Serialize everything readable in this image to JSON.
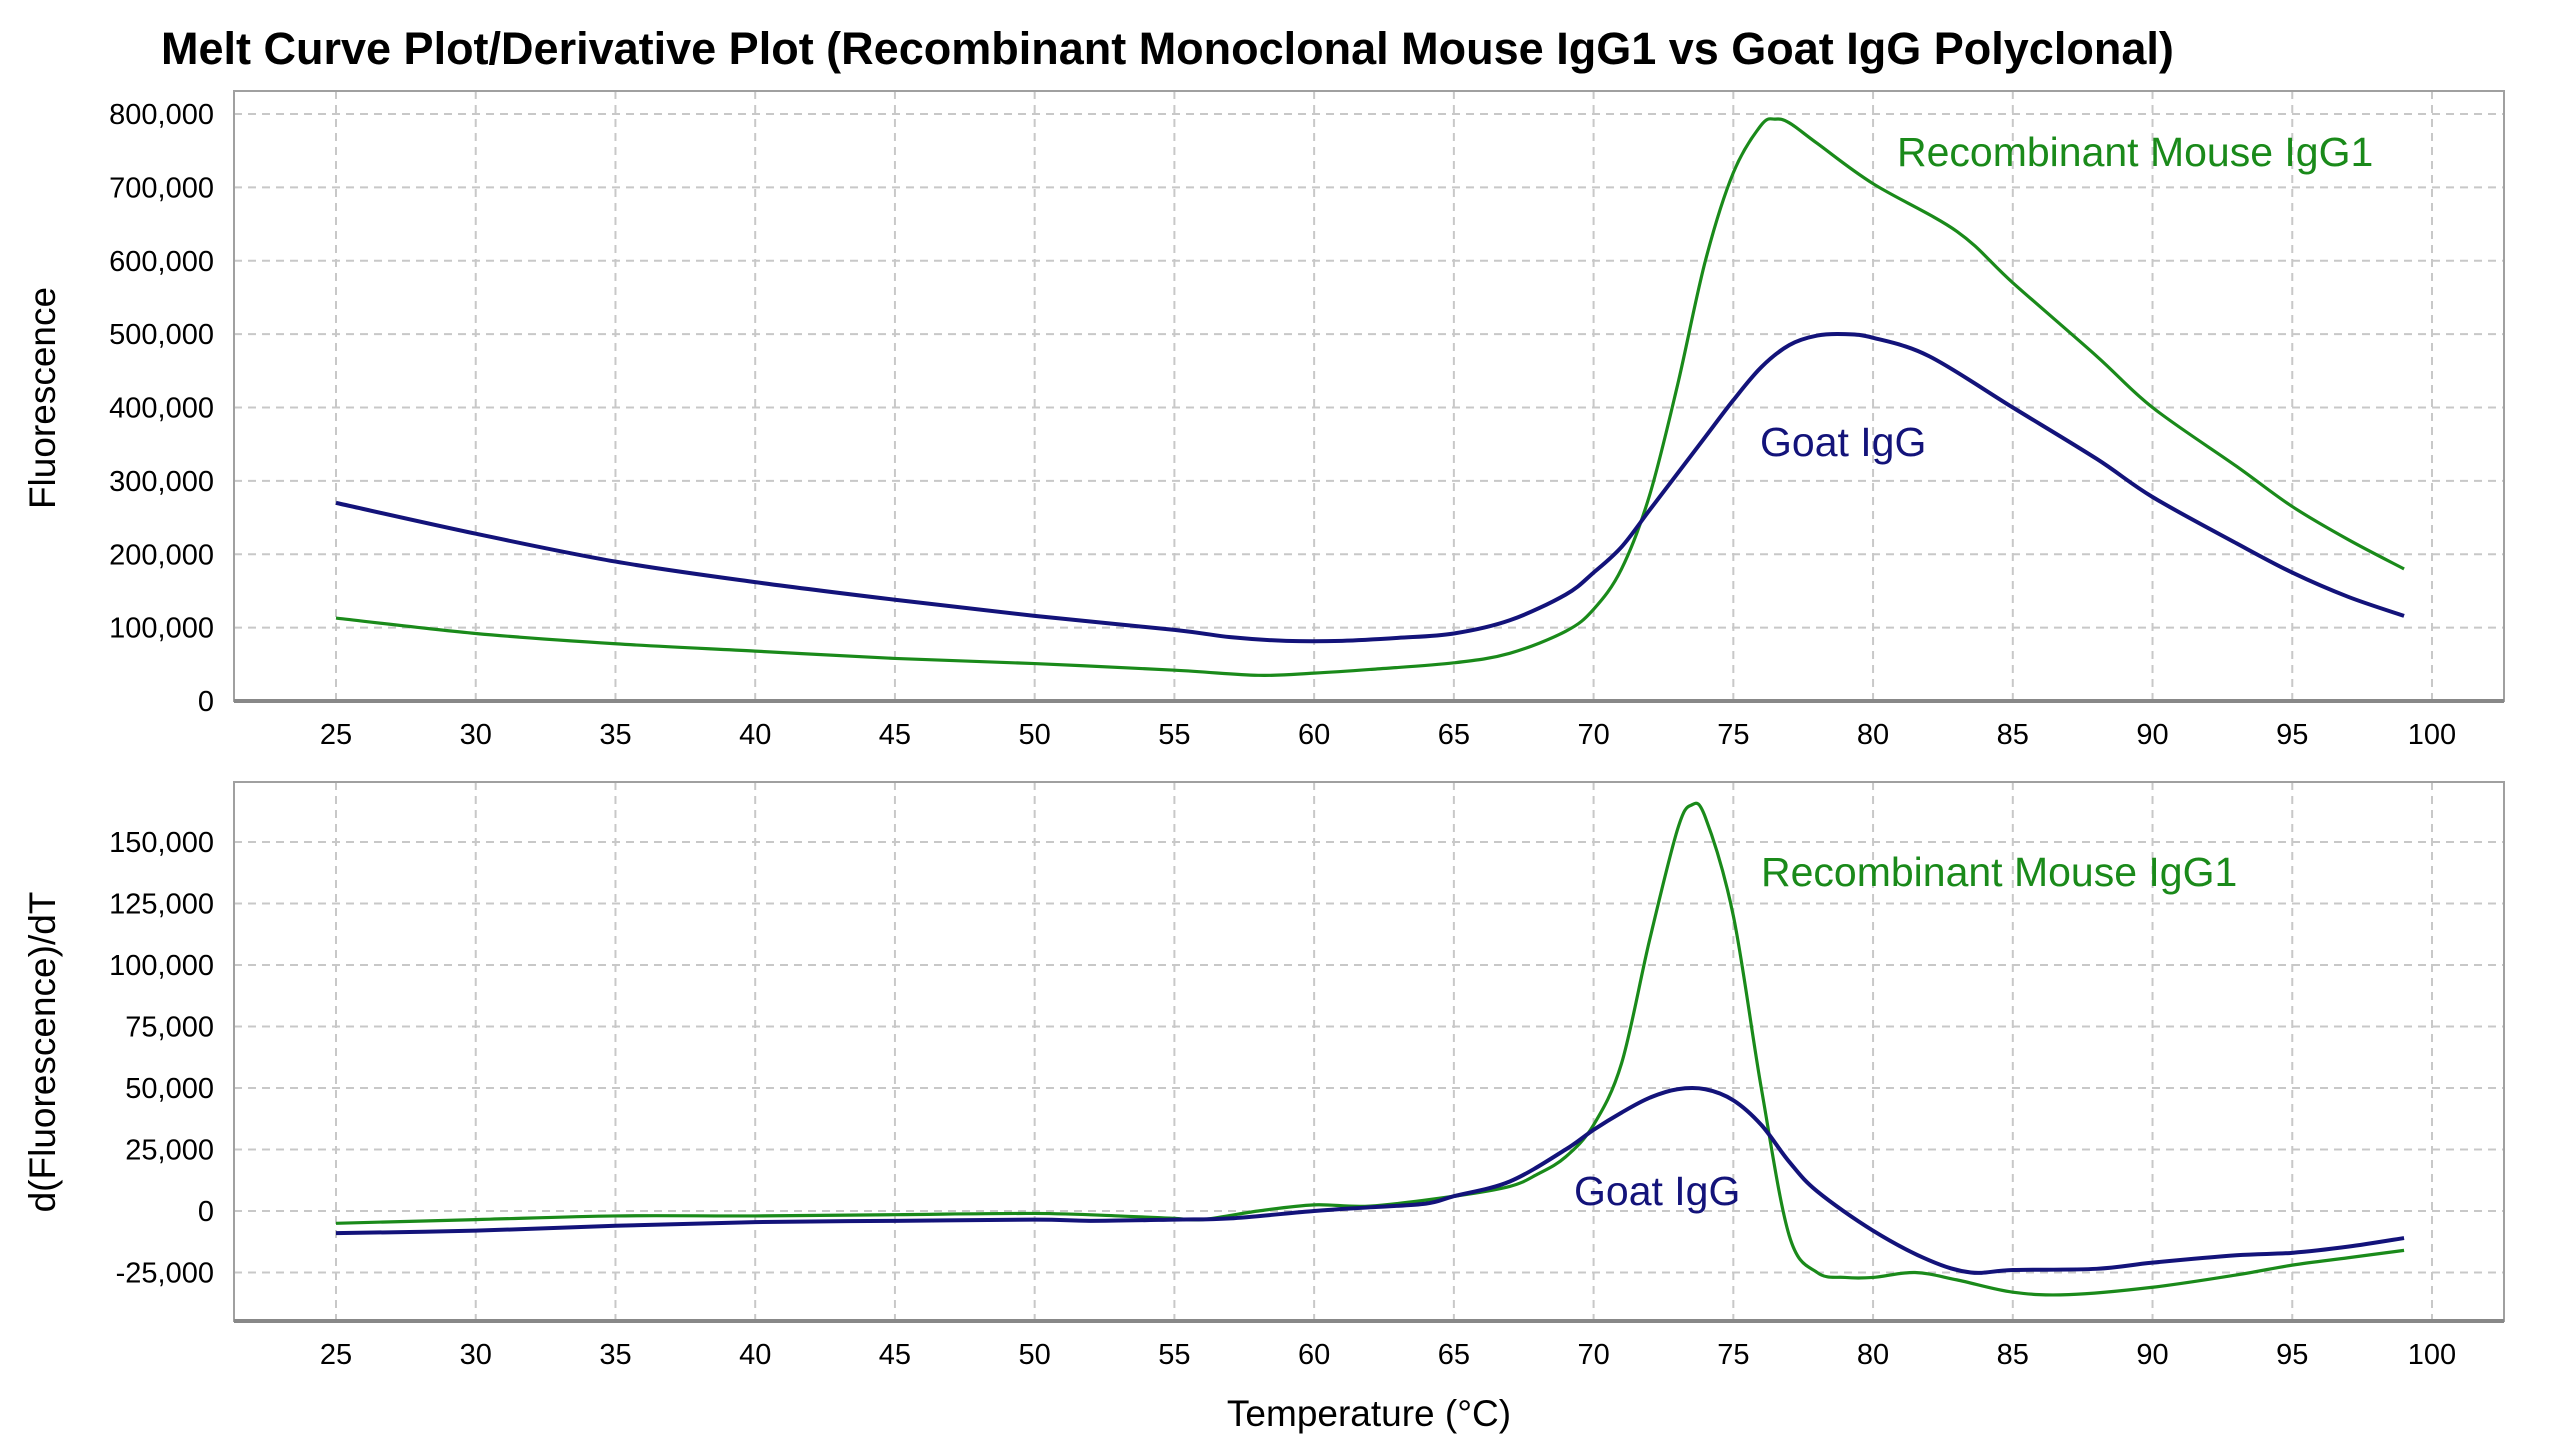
{
  "title": "Melt Curve Plot/Derivative Plot (Recombinant Monoclonal Mouse IgG1 vs Goat IgG Polyclonal)",
  "colors": {
    "green": "#1a8a1a",
    "navy": "#13137a",
    "grid": "#c8c8c8"
  },
  "chart_data": [
    {
      "type": "line",
      "ylabel": "Fluorescence",
      "xlabel": "",
      "xlim": [
        21.5,
        102.5
      ],
      "ylim": [
        0,
        830000
      ],
      "xticks": [
        25,
        30,
        35,
        40,
        45,
        50,
        55,
        60,
        65,
        70,
        75,
        80,
        85,
        90,
        95,
        100
      ],
      "yticks": [
        0,
        100000,
        200000,
        300000,
        400000,
        500000,
        600000,
        700000,
        800000
      ],
      "ytick_labels": [
        "0",
        "100,000",
        "200,000",
        "300,000",
        "400,000",
        "500,000",
        "600,000",
        "700,000",
        "800,000"
      ],
      "grid": true,
      "series": [
        {
          "name": "Recombinant Mouse IgG1",
          "color": "#1a8a1a",
          "x": [
            25,
            30,
            35,
            40,
            45,
            50,
            55,
            58,
            60,
            62,
            65,
            67,
            69,
            70,
            71,
            72,
            73,
            74,
            75,
            76,
            76.5,
            77,
            78,
            80,
            83,
            85,
            88,
            90,
            93,
            95,
            97,
            99
          ],
          "y": [
            113000,
            92000,
            78000,
            68000,
            58000,
            51000,
            42000,
            35000,
            38000,
            43000,
            52000,
            65000,
            95000,
            125000,
            180000,
            280000,
            430000,
            600000,
            720000,
            785000,
            793000,
            788000,
            760000,
            705000,
            640000,
            570000,
            470000,
            400000,
            320000,
            265000,
            220000,
            180000
          ]
        },
        {
          "name": "Goat IgG",
          "color": "#13137a",
          "x": [
            25,
            30,
            35,
            40,
            45,
            50,
            55,
            57,
            59,
            61,
            63,
            65,
            67,
            69,
            70,
            71,
            72,
            73,
            74,
            75,
            76,
            77,
            78,
            79,
            80,
            82,
            85,
            88,
            90,
            93,
            95,
            97,
            99
          ],
          "y": [
            270000,
            228000,
            190000,
            162000,
            138000,
            116000,
            97000,
            87000,
            82000,
            82000,
            86000,
            92000,
            110000,
            145000,
            175000,
            210000,
            260000,
            310000,
            360000,
            410000,
            455000,
            485000,
            498000,
            500000,
            495000,
            470000,
            400000,
            330000,
            278000,
            215000,
            175000,
            142000,
            116000
          ]
        }
      ]
    },
    {
      "type": "line",
      "ylabel": "d(Fluorescence)/dT",
      "xlabel": "Temperature (°C)",
      "xlim": [
        21.5,
        102.5
      ],
      "ylim": [
        -44000,
        175000
      ],
      "xticks": [
        25,
        30,
        35,
        40,
        45,
        50,
        55,
        60,
        65,
        70,
        75,
        80,
        85,
        90,
        95,
        100
      ],
      "yticks": [
        -25000,
        0,
        25000,
        50000,
        75000,
        100000,
        125000,
        150000
      ],
      "ytick_labels": [
        "-25,000",
        "0",
        "25,000",
        "50,000",
        "75,000",
        "100,000",
        "125,000",
        "150,000"
      ],
      "grid": true,
      "series": [
        {
          "name": "Recombinant Mouse IgG1",
          "color": "#1a8a1a",
          "x": [
            25,
            30,
            35,
            40,
            45,
            50,
            53,
            55,
            56,
            58,
            60,
            62,
            65,
            67,
            68,
            69,
            70,
            71,
            72,
            73,
            73.5,
            74,
            75,
            76,
            77,
            78,
            79,
            80,
            81.5,
            83,
            85,
            87,
            90,
            93,
            95,
            97,
            99
          ],
          "y": [
            -5000,
            -3500,
            -2000,
            -2000,
            -1500,
            -1000,
            -2000,
            -3000,
            -3500,
            0,
            2500,
            2000,
            6000,
            10000,
            15000,
            22000,
            35000,
            60000,
            110000,
            155000,
            165000,
            160000,
            120000,
            50000,
            -10000,
            -25000,
            -27000,
            -27000,
            -25000,
            -28000,
            -33000,
            -34000,
            -31000,
            -26000,
            -22000,
            -19000,
            -16000
          ]
        },
        {
          "name": "Goat IgG",
          "color": "#13137a",
          "x": [
            25,
            30,
            35,
            40,
            45,
            50,
            52,
            55,
            57,
            60,
            62,
            64,
            65,
            67,
            69,
            70,
            71,
            72,
            73,
            74,
            75,
            76,
            77,
            78,
            80,
            82,
            83.5,
            85,
            88,
            90,
            93,
            95,
            97,
            99
          ],
          "y": [
            -9000,
            -8000,
            -6000,
            -4500,
            -4000,
            -3500,
            -4000,
            -3500,
            -3000,
            0,
            1500,
            3000,
            6000,
            12000,
            25000,
            33000,
            40000,
            46000,
            49500,
            49500,
            45000,
            35000,
            20000,
            8000,
            -8000,
            -20000,
            -25000,
            -24000,
            -23500,
            -21000,
            -18000,
            -17000,
            -14500,
            -11000
          ]
        }
      ]
    }
  ]
}
